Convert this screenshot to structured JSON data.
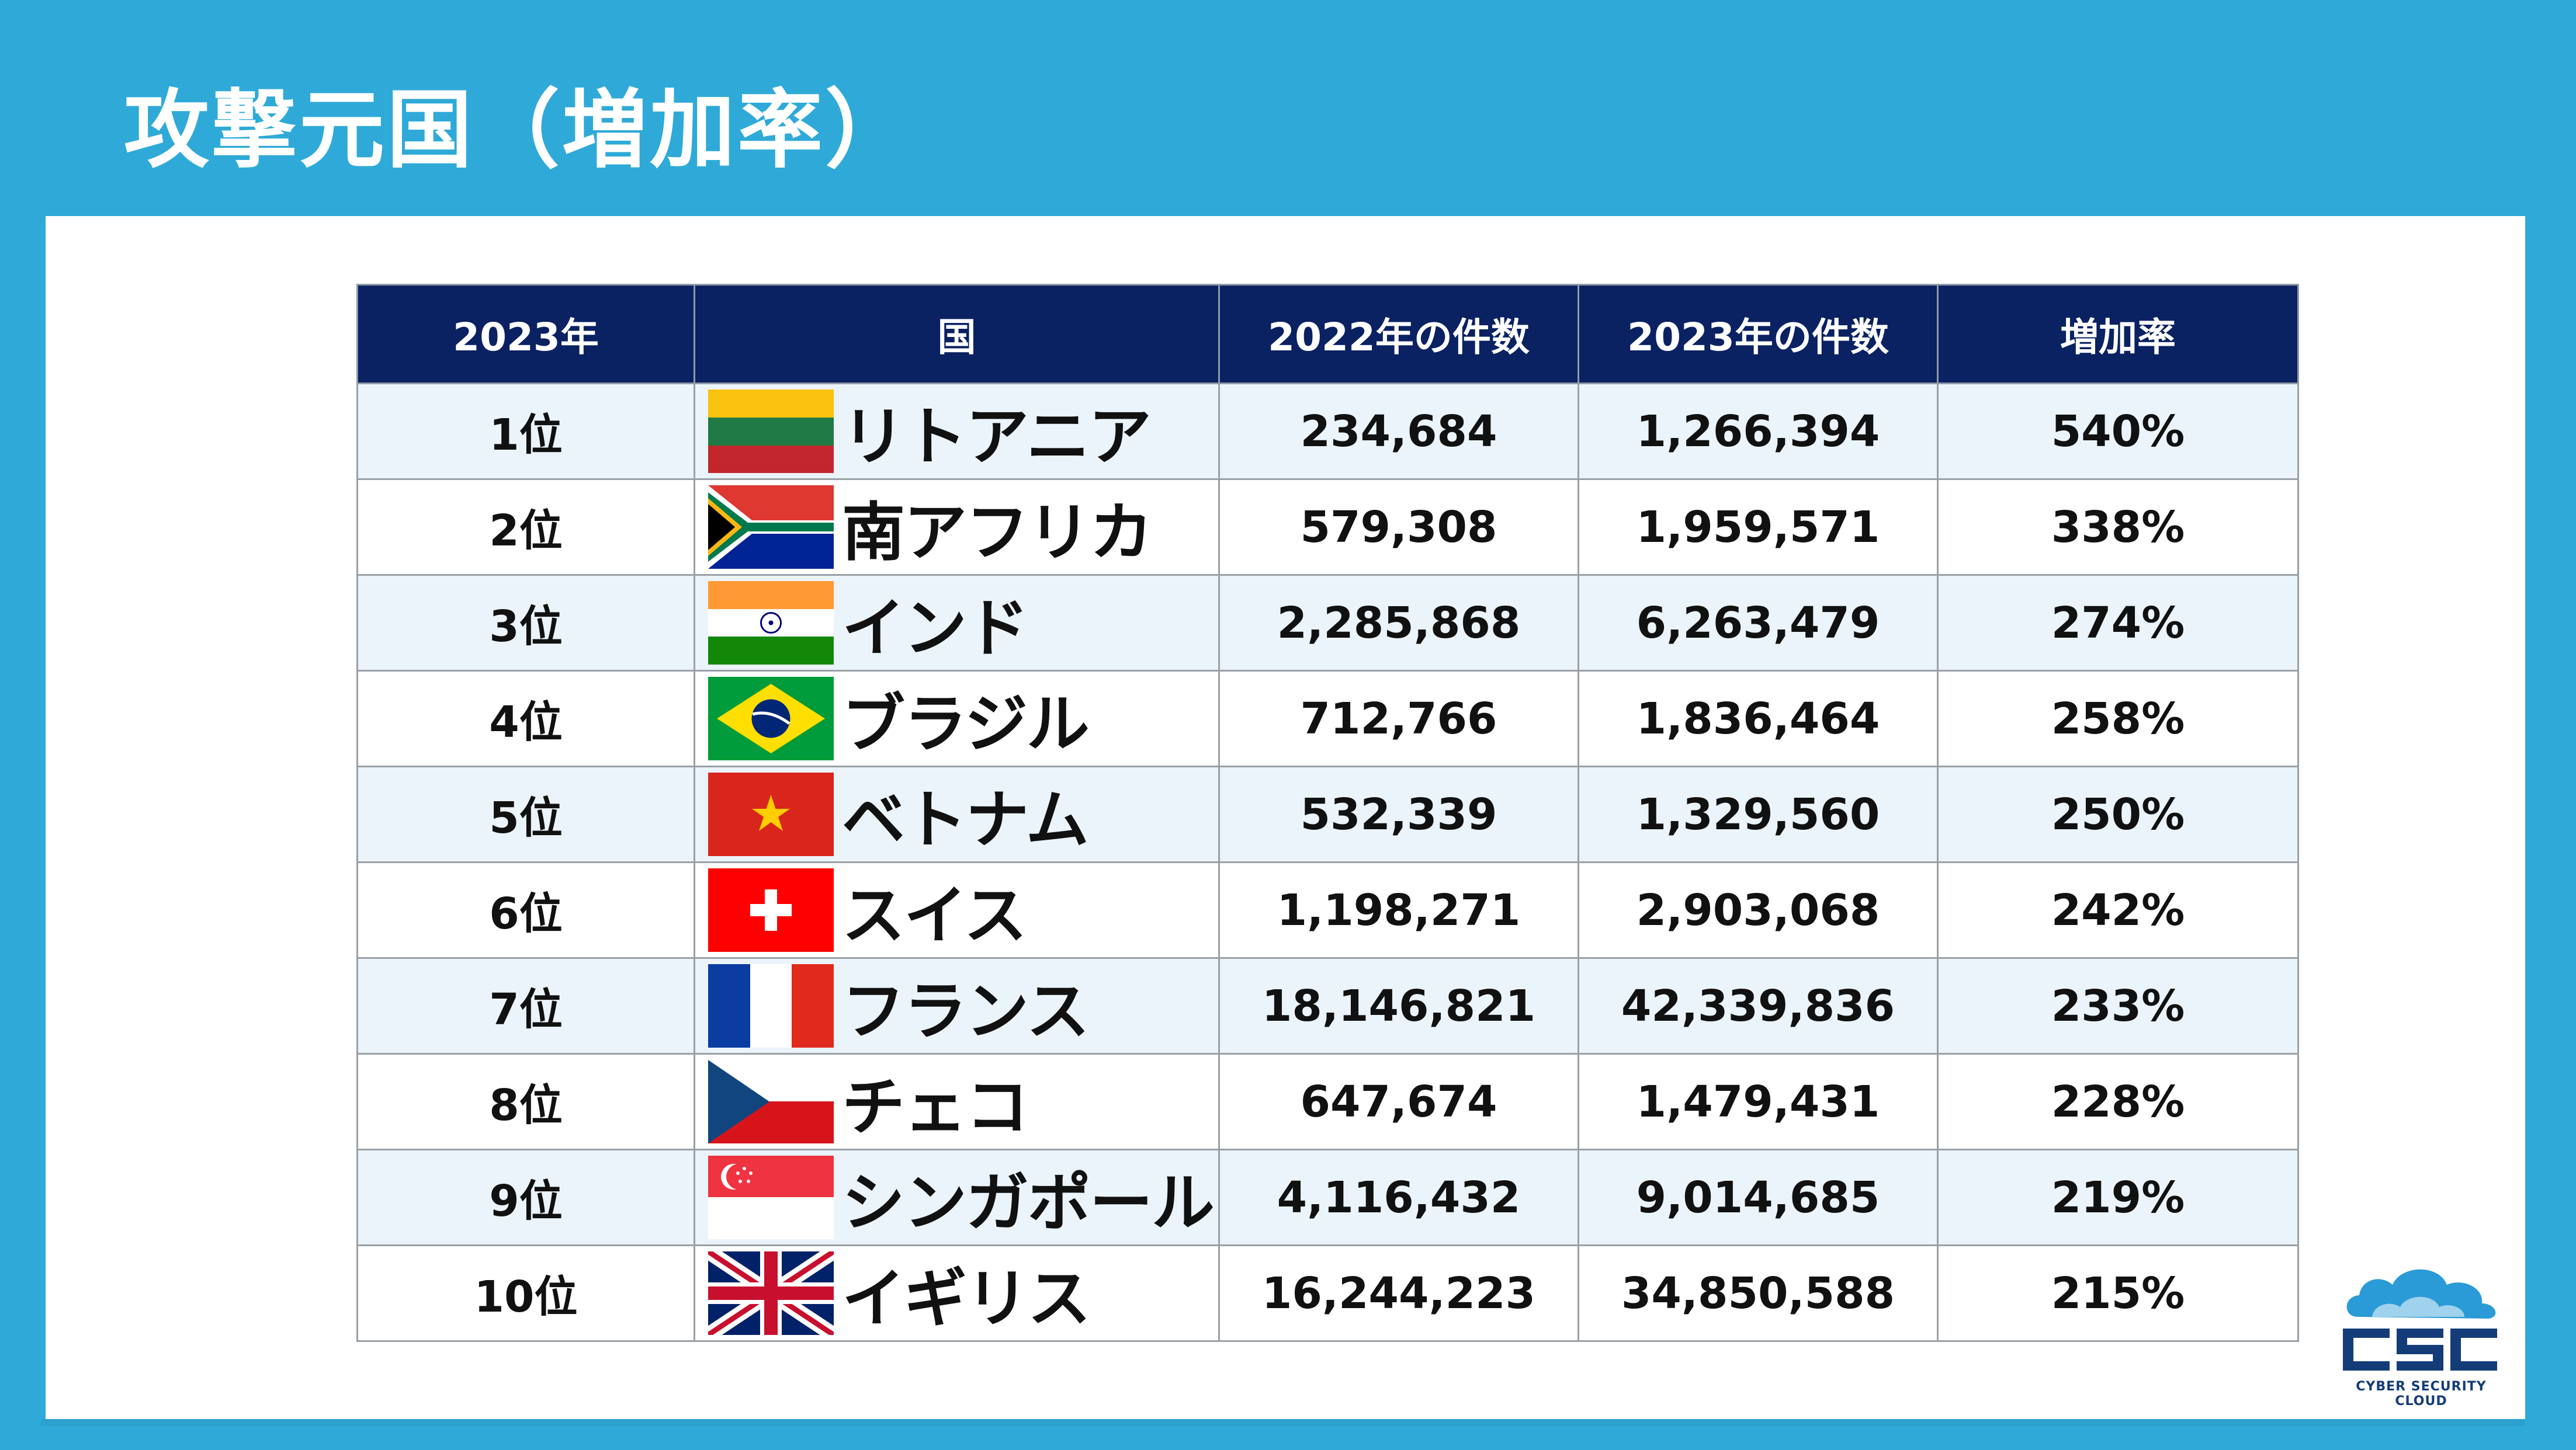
{
  "title": "攻撃元国（増加率）",
  "colors": {
    "background": "#2faad8",
    "header": "#0a2162",
    "row_alt": "#ebf4fb"
  },
  "table": {
    "headers": [
      "2023年",
      "国",
      "2022年の件数",
      "2023年の件数",
      "増加率"
    ],
    "rows": [
      {
        "rank": "1位",
        "flag": "lithuania-flag",
        "country": "リトアニア",
        "y2022": "234,684",
        "y2023": "1,266,394",
        "rate": "540%"
      },
      {
        "rank": "2位",
        "flag": "south-africa-flag",
        "country": "南アフリカ",
        "y2022": "579,308",
        "y2023": "1,959,571",
        "rate": "338%"
      },
      {
        "rank": "3位",
        "flag": "india-flag",
        "country": "インド",
        "y2022": "2,285,868",
        "y2023": "6,263,479",
        "rate": "274%"
      },
      {
        "rank": "4位",
        "flag": "brazil-flag",
        "country": "ブラジル",
        "y2022": "712,766",
        "y2023": "1,836,464",
        "rate": "258%"
      },
      {
        "rank": "5位",
        "flag": "vietnam-flag",
        "country": "ベトナム",
        "y2022": "532,339",
        "y2023": "1,329,560",
        "rate": "250%"
      },
      {
        "rank": "6位",
        "flag": "switzerland-flag",
        "country": "スイス",
        "y2022": "1,198,271",
        "y2023": "2,903,068",
        "rate": "242%"
      },
      {
        "rank": "7位",
        "flag": "france-flag",
        "country": "フランス",
        "y2022": "18,146,821",
        "y2023": "42,339,836",
        "rate": "233%"
      },
      {
        "rank": "8位",
        "flag": "czech-flag",
        "country": "チェコ",
        "y2022": "647,674",
        "y2023": "1,479,431",
        "rate": "228%"
      },
      {
        "rank": "9位",
        "flag": "singapore-flag",
        "country": "シンガポール",
        "y2022": "4,116,432",
        "y2023": "9,014,685",
        "rate": "219%"
      },
      {
        "rank": "10位",
        "flag": "uk-flag",
        "country": "イギリス",
        "y2022": "16,244,223",
        "y2023": "34,850,588",
        "rate": "215%"
      }
    ]
  },
  "logo": {
    "mark": "CSC",
    "subtitle": "CYBER SECURITY CLOUD"
  }
}
